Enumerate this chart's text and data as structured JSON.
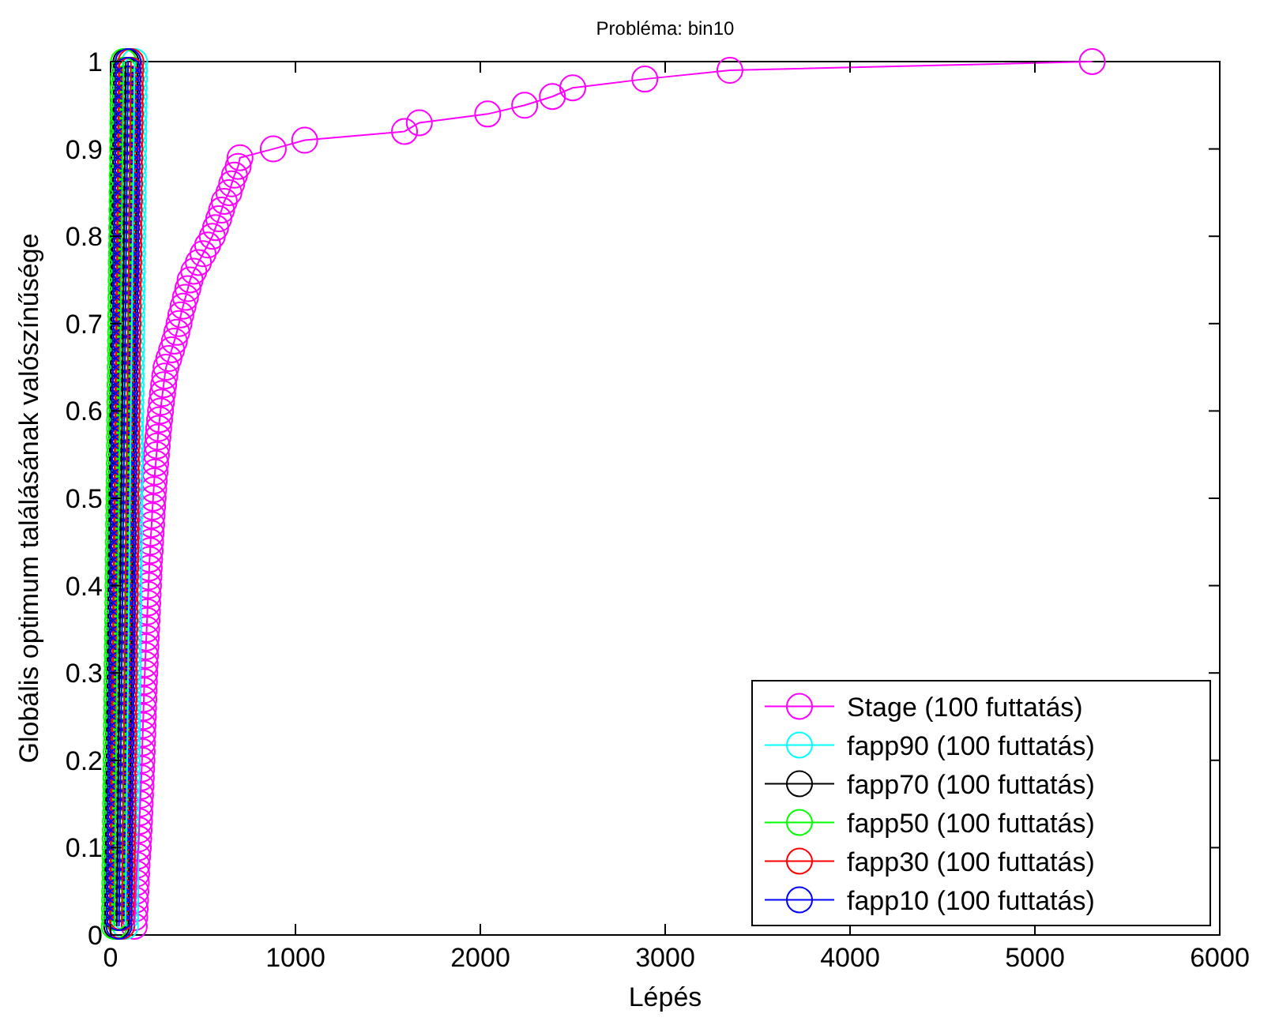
{
  "chart_data": {
    "type": "line",
    "title": "Probléma: bin10",
    "xlabel": "Lépés",
    "ylabel": "Globális optimum találásának valószínűsége",
    "xlim": [
      0,
      6000
    ],
    "xticks": [
      0,
      1000,
      2000,
      3000,
      4000,
      5000,
      6000
    ],
    "ylim": [
      0,
      1
    ],
    "yticks": [
      0,
      0.1,
      0.2,
      0.3,
      0.4,
      0.5,
      0.6,
      0.7,
      0.8,
      0.9,
      1
    ],
    "grid": false,
    "legend": "bottom right",
    "marker": "circle",
    "line_style": "solid",
    "series": [
      {
        "name": "Stage (100 futtatás)",
        "color": "#ff00ff",
        "x": [
          128,
          130,
          133,
          135,
          137,
          139,
          141,
          143,
          146,
          150,
          152,
          154,
          156,
          158,
          160,
          162,
          164,
          166,
          168,
          170,
          171,
          172,
          174,
          175,
          177,
          178,
          180,
          181,
          183,
          185,
          187,
          189,
          191,
          193,
          195,
          197,
          199,
          201,
          203,
          205,
          207,
          209,
          211,
          214,
          216,
          219,
          222,
          224,
          227,
          230,
          233,
          236,
          240,
          244,
          248,
          252,
          256,
          260,
          265,
          270,
          275,
          281,
          287,
          293,
          300,
          315,
          330,
          345,
          358,
          370,
          380,
          392,
          405,
          418,
          430,
          450,
          475,
          500,
          525,
          550,
          568,
          585,
          600,
          615,
          640,
          655,
          670,
          690,
          700,
          880,
          1050,
          1590,
          1670,
          2040,
          2240,
          2390,
          2500,
          2890,
          3350,
          5310
        ],
        "values": [
          0.01,
          0.02,
          0.03,
          0.04,
          0.05,
          0.06,
          0.07,
          0.08,
          0.09,
          0.1,
          0.11,
          0.12,
          0.13,
          0.14,
          0.15,
          0.16,
          0.17,
          0.18,
          0.19,
          0.2,
          0.21,
          0.22,
          0.23,
          0.24,
          0.25,
          0.26,
          0.27,
          0.28,
          0.29,
          0.3,
          0.31,
          0.32,
          0.33,
          0.34,
          0.35,
          0.36,
          0.37,
          0.38,
          0.39,
          0.4,
          0.41,
          0.42,
          0.43,
          0.44,
          0.45,
          0.46,
          0.47,
          0.48,
          0.49,
          0.5,
          0.51,
          0.52,
          0.53,
          0.54,
          0.55,
          0.56,
          0.57,
          0.58,
          0.59,
          0.6,
          0.61,
          0.62,
          0.63,
          0.64,
          0.65,
          0.66,
          0.67,
          0.68,
          0.69,
          0.7,
          0.71,
          0.72,
          0.73,
          0.74,
          0.75,
          0.76,
          0.77,
          0.78,
          0.79,
          0.8,
          0.81,
          0.82,
          0.83,
          0.84,
          0.85,
          0.86,
          0.87,
          0.88,
          0.89,
          0.9,
          0.91,
          0.92,
          0.93,
          0.94,
          0.95,
          0.96,
          0.97,
          0.98,
          0.99,
          1
        ]
      },
      {
        "name": "fapp90 (100 futtatás)",
        "color": "#00ffff",
        "x": [
          80,
          81,
          81,
          82,
          82,
          83,
          83,
          84,
          84,
          85,
          85,
          86,
          86,
          87,
          87,
          88,
          88,
          89,
          89,
          90,
          90,
          91,
          91,
          92,
          92,
          93,
          93,
          94,
          94,
          95,
          95,
          96,
          96,
          97,
          97,
          98,
          98,
          99,
          99,
          100,
          100,
          101,
          101,
          102,
          102,
          103,
          103,
          104,
          104,
          105,
          105,
          106,
          106,
          107,
          107,
          108,
          108,
          109,
          109,
          110,
          110,
          111,
          111,
          112,
          112,
          113,
          113,
          114,
          114,
          115,
          115,
          116,
          116,
          117,
          117,
          118,
          118,
          119,
          119,
          120,
          120,
          121,
          121,
          122,
          122,
          123,
          123,
          124,
          124,
          125,
          125,
          126,
          126,
          127,
          127,
          128,
          128,
          129,
          129,
          130
        ],
        "values": [
          0.01,
          0.02,
          0.03,
          0.04,
          0.05,
          0.06,
          0.07,
          0.08,
          0.09,
          0.1,
          0.11,
          0.12,
          0.13,
          0.14,
          0.15,
          0.16,
          0.17,
          0.18,
          0.19,
          0.2,
          0.21,
          0.22,
          0.23,
          0.24,
          0.25,
          0.26,
          0.27,
          0.28,
          0.29,
          0.3,
          0.31,
          0.32,
          0.33,
          0.34,
          0.35,
          0.36,
          0.37,
          0.38,
          0.39,
          0.4,
          0.41,
          0.42,
          0.43,
          0.44,
          0.45,
          0.46,
          0.47,
          0.48,
          0.49,
          0.5,
          0.51,
          0.52,
          0.53,
          0.54,
          0.55,
          0.56,
          0.57,
          0.58,
          0.59,
          0.6,
          0.61,
          0.62,
          0.63,
          0.64,
          0.65,
          0.66,
          0.67,
          0.68,
          0.69,
          0.7,
          0.71,
          0.72,
          0.73,
          0.74,
          0.75,
          0.76,
          0.77,
          0.78,
          0.79,
          0.8,
          0.81,
          0.82,
          0.83,
          0.84,
          0.85,
          0.86,
          0.87,
          0.88,
          0.89,
          0.9,
          0.91,
          0.92,
          0.93,
          0.94,
          0.95,
          0.96,
          0.97,
          0.98,
          0.99,
          1
        ]
      },
      {
        "name": "fapp70 (100 futtatás)",
        "color": "#000000",
        "x": [
          33,
          34,
          34,
          35,
          35,
          36,
          36,
          37,
          37,
          38,
          38,
          39,
          39,
          40,
          40,
          41,
          41,
          42,
          42,
          43,
          43,
          44,
          44,
          45,
          45,
          46,
          46,
          47,
          47,
          48,
          48,
          49,
          49,
          50,
          50,
          51,
          51,
          52,
          52,
          53,
          53,
          54,
          54,
          55,
          55,
          56,
          56,
          57,
          57,
          58,
          58,
          59,
          59,
          60,
          60,
          61,
          61,
          62,
          62,
          63,
          63,
          64,
          64,
          65,
          65,
          66,
          66,
          67,
          67,
          68,
          68,
          69,
          69,
          70,
          70,
          71,
          71,
          72,
          72,
          73,
          73,
          74,
          74,
          75,
          75,
          76,
          76,
          77,
          77,
          78,
          78,
          79,
          79,
          80,
          80,
          81,
          81,
          82,
          82,
          83
        ],
        "values": [
          0.01,
          0.02,
          0.03,
          0.04,
          0.05,
          0.06,
          0.07,
          0.08,
          0.09,
          0.1,
          0.11,
          0.12,
          0.13,
          0.14,
          0.15,
          0.16,
          0.17,
          0.18,
          0.19,
          0.2,
          0.21,
          0.22,
          0.23,
          0.24,
          0.25,
          0.26,
          0.27,
          0.28,
          0.29,
          0.3,
          0.31,
          0.32,
          0.33,
          0.34,
          0.35,
          0.36,
          0.37,
          0.38,
          0.39,
          0.4,
          0.41,
          0.42,
          0.43,
          0.44,
          0.45,
          0.46,
          0.47,
          0.48,
          0.49,
          0.5,
          0.51,
          0.52,
          0.53,
          0.54,
          0.55,
          0.56,
          0.57,
          0.58,
          0.59,
          0.6,
          0.61,
          0.62,
          0.63,
          0.64,
          0.65,
          0.66,
          0.67,
          0.68,
          0.69,
          0.7,
          0.71,
          0.72,
          0.73,
          0.74,
          0.75,
          0.76,
          0.77,
          0.78,
          0.79,
          0.8,
          0.81,
          0.82,
          0.83,
          0.84,
          0.85,
          0.86,
          0.87,
          0.88,
          0.89,
          0.9,
          0.91,
          0.92,
          0.93,
          0.94,
          0.95,
          0.96,
          0.97,
          0.98,
          0.99,
          1
        ]
      },
      {
        "name": "fapp50 (100 futtatás)",
        "color": "#00ff00",
        "x": [
          20,
          21,
          21,
          22,
          22,
          23,
          23,
          24,
          24,
          25,
          25,
          26,
          26,
          27,
          27,
          28,
          28,
          29,
          29,
          30,
          30,
          31,
          31,
          32,
          32,
          33,
          33,
          34,
          34,
          35,
          35,
          36,
          36,
          37,
          37,
          38,
          38,
          39,
          39,
          40,
          40,
          41,
          41,
          42,
          42,
          43,
          43,
          44,
          44,
          45,
          45,
          46,
          46,
          47,
          47,
          48,
          48,
          49,
          49,
          50,
          50,
          51,
          51,
          52,
          52,
          53,
          53,
          54,
          54,
          55,
          55,
          56,
          56,
          57,
          57,
          58,
          58,
          59,
          59,
          60,
          60,
          61,
          61,
          62,
          62,
          63,
          63,
          64,
          64,
          65,
          65,
          66,
          66,
          67,
          67,
          68,
          68,
          69,
          69,
          70
        ],
        "values": [
          0.01,
          0.02,
          0.03,
          0.04,
          0.05,
          0.06,
          0.07,
          0.08,
          0.09,
          0.1,
          0.11,
          0.12,
          0.13,
          0.14,
          0.15,
          0.16,
          0.17,
          0.18,
          0.19,
          0.2,
          0.21,
          0.22,
          0.23,
          0.24,
          0.25,
          0.26,
          0.27,
          0.28,
          0.29,
          0.3,
          0.31,
          0.32,
          0.33,
          0.34,
          0.35,
          0.36,
          0.37,
          0.38,
          0.39,
          0.4,
          0.41,
          0.42,
          0.43,
          0.44,
          0.45,
          0.46,
          0.47,
          0.48,
          0.49,
          0.5,
          0.51,
          0.52,
          0.53,
          0.54,
          0.55,
          0.56,
          0.57,
          0.58,
          0.59,
          0.6,
          0.61,
          0.62,
          0.63,
          0.64,
          0.65,
          0.66,
          0.67,
          0.68,
          0.69,
          0.7,
          0.71,
          0.72,
          0.73,
          0.74,
          0.75,
          0.76,
          0.77,
          0.78,
          0.79,
          0.8,
          0.81,
          0.82,
          0.83,
          0.84,
          0.85,
          0.86,
          0.87,
          0.88,
          0.89,
          0.9,
          0.91,
          0.92,
          0.93,
          0.94,
          0.95,
          0.96,
          0.97,
          0.98,
          0.99,
          1
        ]
      },
      {
        "name": "fapp30 (100 futtatás)",
        "color": "#ff0000",
        "x": [
          60,
          61,
          61,
          62,
          62,
          63,
          63,
          64,
          64,
          65,
          65,
          66,
          66,
          67,
          67,
          68,
          68,
          69,
          69,
          70,
          70,
          71,
          71,
          72,
          72,
          73,
          73,
          74,
          74,
          75,
          75,
          76,
          76,
          77,
          77,
          78,
          78,
          79,
          79,
          80,
          80,
          81,
          81,
          82,
          82,
          83,
          83,
          84,
          84,
          85,
          85,
          86,
          86,
          87,
          87,
          88,
          88,
          89,
          89,
          90,
          90,
          91,
          91,
          92,
          92,
          93,
          93,
          94,
          94,
          95,
          95,
          96,
          96,
          97,
          97,
          98,
          98,
          99,
          99,
          100,
          100,
          101,
          101,
          102,
          102,
          103,
          103,
          104,
          104,
          105,
          105,
          106,
          106,
          107,
          107,
          108,
          108,
          109,
          109,
          110
        ],
        "values": [
          0.01,
          0.02,
          0.03,
          0.04,
          0.05,
          0.06,
          0.07,
          0.08,
          0.09,
          0.1,
          0.11,
          0.12,
          0.13,
          0.14,
          0.15,
          0.16,
          0.17,
          0.18,
          0.19,
          0.2,
          0.21,
          0.22,
          0.23,
          0.24,
          0.25,
          0.26,
          0.27,
          0.28,
          0.29,
          0.3,
          0.31,
          0.32,
          0.33,
          0.34,
          0.35,
          0.36,
          0.37,
          0.38,
          0.39,
          0.4,
          0.41,
          0.42,
          0.43,
          0.44,
          0.45,
          0.46,
          0.47,
          0.48,
          0.49,
          0.5,
          0.51,
          0.52,
          0.53,
          0.54,
          0.55,
          0.56,
          0.57,
          0.58,
          0.59,
          0.6,
          0.61,
          0.62,
          0.63,
          0.64,
          0.65,
          0.66,
          0.67,
          0.68,
          0.69,
          0.7,
          0.71,
          0.72,
          0.73,
          0.74,
          0.75,
          0.76,
          0.77,
          0.78,
          0.79,
          0.8,
          0.81,
          0.82,
          0.83,
          0.84,
          0.85,
          0.86,
          0.87,
          0.88,
          0.89,
          0.9,
          0.91,
          0.92,
          0.93,
          0.94,
          0.95,
          0.96,
          0.97,
          0.98,
          0.99,
          1
        ]
      },
      {
        "name": "fapp10 (100 futtatás)",
        "color": "#0000ff",
        "x": [
          45,
          46,
          46,
          47,
          47,
          48,
          48,
          49,
          49,
          50,
          50,
          51,
          51,
          52,
          52,
          53,
          53,
          54,
          54,
          55,
          55,
          56,
          56,
          57,
          57,
          58,
          58,
          59,
          59,
          60,
          60,
          61,
          61,
          62,
          62,
          63,
          63,
          64,
          64,
          65,
          65,
          66,
          66,
          67,
          67,
          68,
          68,
          69,
          69,
          70,
          70,
          71,
          71,
          72,
          72,
          73,
          73,
          74,
          74,
          75,
          75,
          76,
          76,
          77,
          77,
          78,
          78,
          79,
          79,
          80,
          80,
          81,
          81,
          82,
          82,
          83,
          83,
          84,
          84,
          85,
          85,
          86,
          86,
          87,
          87,
          88,
          88,
          89,
          89,
          90,
          90,
          91,
          91,
          92,
          92,
          93,
          93,
          94,
          94,
          95
        ],
        "values": [
          0.01,
          0.02,
          0.03,
          0.04,
          0.05,
          0.06,
          0.07,
          0.08,
          0.09,
          0.1,
          0.11,
          0.12,
          0.13,
          0.14,
          0.15,
          0.16,
          0.17,
          0.18,
          0.19,
          0.2,
          0.21,
          0.22,
          0.23,
          0.24,
          0.25,
          0.26,
          0.27,
          0.28,
          0.29,
          0.3,
          0.31,
          0.32,
          0.33,
          0.34,
          0.35,
          0.36,
          0.37,
          0.38,
          0.39,
          0.4,
          0.41,
          0.42,
          0.43,
          0.44,
          0.45,
          0.46,
          0.47,
          0.48,
          0.49,
          0.5,
          0.51,
          0.52,
          0.53,
          0.54,
          0.55,
          0.56,
          0.57,
          0.58,
          0.59,
          0.6,
          0.61,
          0.62,
          0.63,
          0.64,
          0.65,
          0.66,
          0.67,
          0.68,
          0.69,
          0.7,
          0.71,
          0.72,
          0.73,
          0.74,
          0.75,
          0.76,
          0.77,
          0.78,
          0.79,
          0.8,
          0.81,
          0.82,
          0.83,
          0.84,
          0.85,
          0.86,
          0.87,
          0.88,
          0.89,
          0.9,
          0.91,
          0.92,
          0.93,
          0.94,
          0.95,
          0.96,
          0.97,
          0.98,
          0.99,
          1
        ]
      }
    ]
  }
}
